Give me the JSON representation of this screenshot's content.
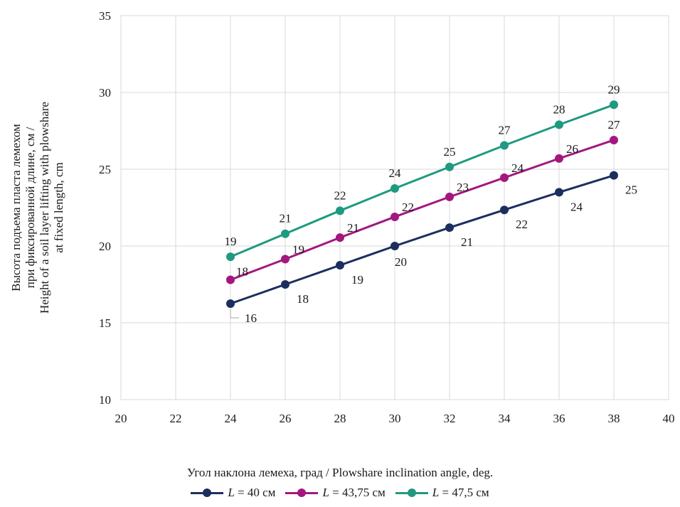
{
  "chart_data": {
    "type": "line",
    "xlabel": "Угол наклона лемеха, град / Plowshare inclination angle, deg.",
    "ylabel_lines": [
      "Высота подъема пласта лемехом",
      "при фиксированной длине, см /",
      "Height of a soil layer lifting with plowshare",
      "at fixed length, cm"
    ],
    "xlim": [
      20,
      40
    ],
    "ylim": [
      10,
      35
    ],
    "xticks": [
      20,
      22,
      24,
      26,
      28,
      30,
      32,
      34,
      36,
      38,
      40
    ],
    "yticks": [
      10,
      15,
      20,
      25,
      30,
      35
    ],
    "grid": true,
    "legend_position": "bottom",
    "x": [
      24,
      26,
      28,
      30,
      32,
      34,
      36,
      38
    ],
    "series": [
      {
        "name": "L = 40 см",
        "name_var": "L",
        "name_rest": " = 40 см",
        "color": "#1b2f5e",
        "values": [
          16.25,
          17.5,
          18.75,
          20.0,
          21.2,
          22.35,
          23.5,
          24.6
        ],
        "labels": [
          "16",
          "18",
          "19",
          "20",
          "21",
          "22",
          "24",
          "25"
        ]
      },
      {
        "name": "L = 43,75 см",
        "name_var": "L",
        "name_rest": " = 43,75 см",
        "color": "#a3177f",
        "values": [
          17.8,
          19.15,
          20.55,
          21.9,
          23.2,
          24.45,
          25.7,
          26.9
        ],
        "labels": [
          "18",
          "19",
          "21",
          "22",
          "23",
          "24",
          "26",
          "27"
        ]
      },
      {
        "name": "L = 47,5 см",
        "name_var": "L",
        "name_rest": " = 47,5 см",
        "color": "#1f9a80",
        "values": [
          19.3,
          20.8,
          22.3,
          23.75,
          25.15,
          26.55,
          27.9,
          29.2
        ],
        "labels": [
          "19",
          "21",
          "22",
          "24",
          "25",
          "27",
          "28",
          "29"
        ]
      }
    ]
  }
}
